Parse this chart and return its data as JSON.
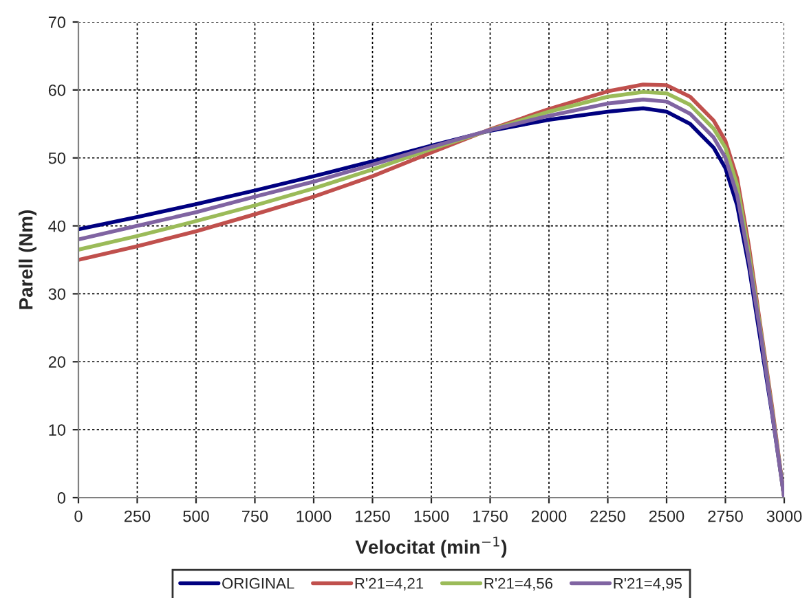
{
  "chart_data": {
    "type": "line",
    "xlabel": "Velocitat (min$^{−1}$)",
    "ylabel": "Parell (Nm)",
    "x": [
      0,
      250,
      500,
      750,
      1000,
      1250,
      1500,
      1750,
      2000,
      2250,
      2400,
      2500,
      2600,
      2700,
      2750,
      2800,
      2850,
      2900,
      2950,
      3000
    ],
    "series": [
      {
        "name": "ORIGINAL",
        "color": "#000080",
        "values": [
          39.5,
          41.3,
          43.2,
          45.2,
          47.3,
          49.5,
          51.8,
          54,
          55.6,
          56.8,
          57.3,
          56.8,
          55,
          51.5,
          48.5,
          43,
          34,
          23,
          12,
          0
        ]
      },
      {
        "name": "R'21=4,21",
        "color": "#c0504d",
        "values": [
          35,
          37,
          39.2,
          41.7,
          44.3,
          47.3,
          50.8,
          54.2,
          57.2,
          59.8,
          60.8,
          60.7,
          59,
          55.5,
          52.5,
          47,
          37,
          25,
          13,
          0
        ]
      },
      {
        "name": "R'21=4,56",
        "color": "#9bbb59",
        "values": [
          36.5,
          38.5,
          40.7,
          43,
          45.5,
          48.3,
          51.3,
          54.1,
          56.8,
          59,
          59.7,
          59.5,
          57.8,
          54.3,
          51.5,
          46,
          36,
          24.5,
          12.5,
          0
        ]
      },
      {
        "name": "R'21=4,95",
        "color": "#8064a2",
        "values": [
          38,
          40,
          42,
          44.3,
          46.5,
          49,
          51.6,
          54.1,
          56.2,
          58,
          58.6,
          58.3,
          56.5,
          53,
          50,
          44.5,
          35,
          24,
          12.2,
          0
        ]
      }
    ],
    "xlim": [
      0,
      3000
    ],
    "xticks": [
      0,
      250,
      500,
      750,
      1000,
      1250,
      1500,
      1750,
      2000,
      2250,
      2500,
      2750,
      3000
    ],
    "ylim": [
      0,
      70
    ],
    "yticks": [
      0,
      10,
      20,
      30,
      40,
      50,
      60,
      70
    ],
    "grid": true,
    "legend": "bottom",
    "marker": "none",
    "line_style": "solid"
  }
}
